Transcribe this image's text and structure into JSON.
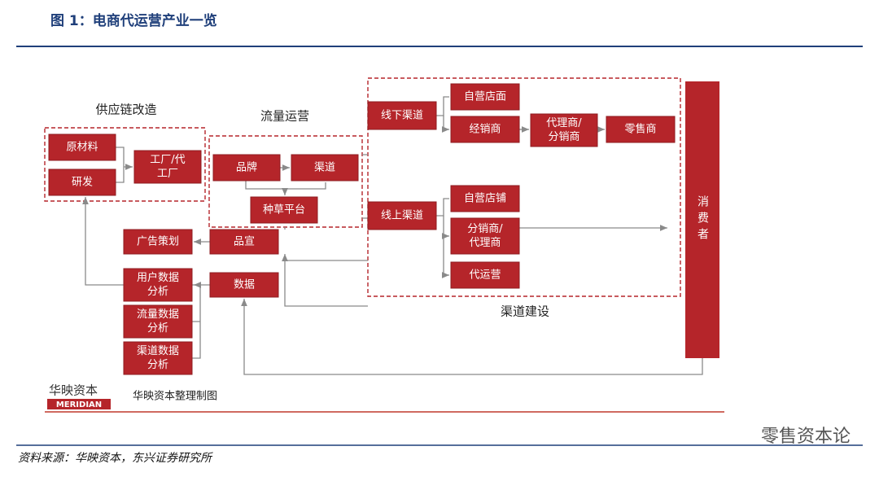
{
  "header": {
    "title": "图 1：电商代运营产业一览"
  },
  "diagram": {
    "groups": [
      {
        "label": "供应链改造"
      },
      {
        "label": "流量运营"
      },
      {
        "label": "渠道建设"
      }
    ],
    "boxes": [
      {
        "lines": [
          "原材料"
        ]
      },
      {
        "lines": [
          "研发"
        ]
      },
      {
        "lines": [
          "工厂/代",
          "工厂"
        ]
      },
      {
        "lines": [
          "品牌"
        ]
      },
      {
        "lines": [
          "渠道"
        ]
      },
      {
        "lines": [
          "种草平台"
        ]
      },
      {
        "lines": [
          "线下渠道"
        ]
      },
      {
        "lines": [
          "线上渠道"
        ]
      },
      {
        "lines": [
          "自营店面"
        ]
      },
      {
        "lines": [
          "经销商"
        ]
      },
      {
        "lines": [
          "代理商/",
          "分销商"
        ]
      },
      {
        "lines": [
          "零售商"
        ]
      },
      {
        "lines": [
          "自营店铺"
        ]
      },
      {
        "lines": [
          "分销商/",
          "代理商"
        ]
      },
      {
        "lines": [
          "代运营"
        ]
      },
      {
        "lines": [
          "广告策划"
        ]
      },
      {
        "lines": [
          "品宣"
        ]
      },
      {
        "lines": [
          "用户数据",
          "分析"
        ]
      },
      {
        "lines": [
          "数据"
        ]
      },
      {
        "lines": [
          "流量数据",
          "分析"
        ]
      },
      {
        "lines": [
          "渠道数据",
          "分析"
        ]
      }
    ],
    "consumer": "消费者",
    "credit": {
      "logo": "华映资本",
      "logo_sub": "MERIDIAN",
      "note": "华映资本整理制图"
    }
  },
  "footer": {
    "source": "资料来源：华映资本，东兴证券研究所"
  },
  "watermark": "零售资本论"
}
